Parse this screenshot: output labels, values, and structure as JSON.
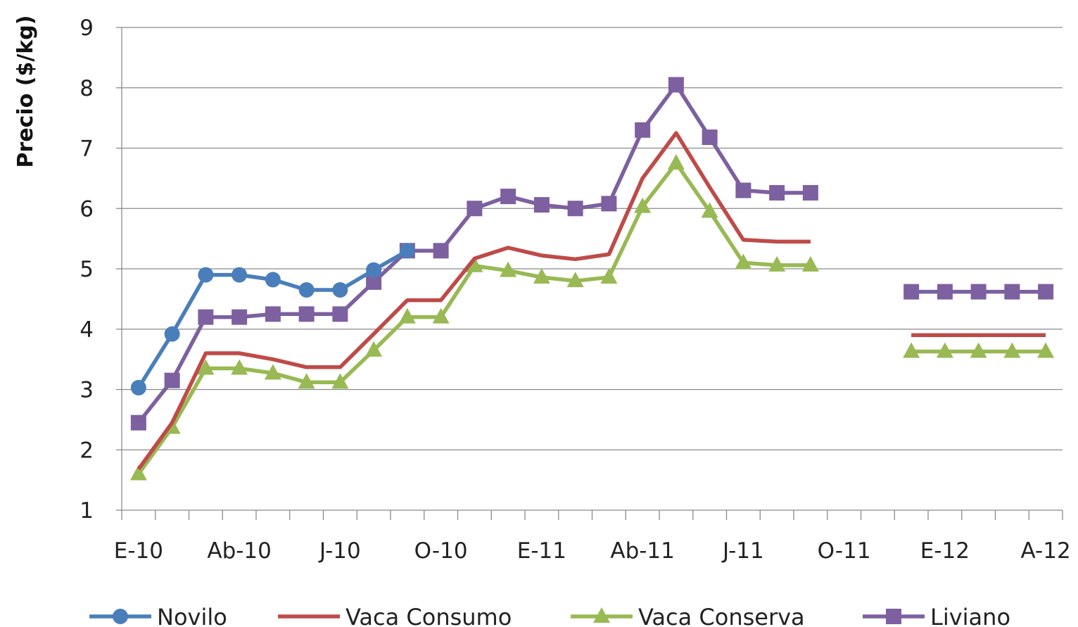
{
  "chart_data": {
    "type": "line",
    "title": "",
    "xlabel": "",
    "ylabel": "Precio ($/kg)",
    "ylim": [
      1,
      9
    ],
    "yticks": [
      "1",
      "2",
      "3",
      "4",
      "5",
      "6",
      "7",
      "8",
      "9"
    ],
    "xtick_labels": [
      "E-10",
      "Ab-10",
      "J-10",
      "O-10",
      "E-11",
      "Ab-11",
      "J-11",
      "O-11",
      "E-12",
      "A-12"
    ],
    "x": [
      "E-10",
      "F-10",
      "M-10",
      "Ab-10",
      "My-10",
      "J-10",
      "Jl-10",
      "Ag-10",
      "S-10",
      "O-10",
      "N-10",
      "D-10",
      "E-11",
      "F-11",
      "M-11",
      "Ab-11",
      "My-11",
      "J-11",
      "Jl-11",
      "Ag-11",
      "S-11",
      "O-11",
      "N-11",
      "D-11",
      "E-12",
      "F-12",
      "M-12",
      "A-12"
    ],
    "grid": true,
    "legend_position": "bottom",
    "series": [
      {
        "name": "Novilo",
        "color": "#4a7ebb",
        "marker": "circle",
        "values": [
          3.03,
          3.92,
          4.9,
          4.9,
          4.82,
          4.65,
          4.65,
          4.98,
          5.3,
          null,
          null,
          null,
          null,
          null,
          null,
          null,
          null,
          null,
          null,
          null,
          null,
          null,
          null,
          null,
          null,
          null,
          null,
          null
        ]
      },
      {
        "name": "Vaca Consumo",
        "color": "#be4b48",
        "marker": "none",
        "values": [
          1.68,
          2.45,
          3.6,
          3.6,
          3.5,
          3.37,
          3.37,
          3.92,
          4.48,
          4.48,
          5.17,
          5.35,
          5.22,
          5.16,
          5.24,
          6.5,
          7.25,
          6.35,
          5.48,
          5.45,
          5.45,
          null,
          null,
          3.9,
          3.9,
          3.9,
          3.9,
          3.9
        ]
      },
      {
        "name": "Vaca Conserva",
        "color": "#98b954",
        "marker": "triangle",
        "values": [
          1.6,
          2.37,
          3.35,
          3.35,
          3.27,
          3.12,
          3.12,
          3.65,
          4.2,
          4.2,
          5.05,
          4.97,
          4.86,
          4.8,
          4.86,
          6.03,
          6.75,
          5.95,
          5.1,
          5.06,
          5.06,
          null,
          null,
          3.63,
          3.63,
          3.63,
          3.63,
          3.63
        ]
      },
      {
        "name": "Liviano",
        "color": "#7d60a0",
        "marker": "square",
        "values": [
          2.45,
          3.15,
          4.2,
          4.2,
          4.25,
          4.25,
          4.25,
          4.78,
          5.3,
          5.3,
          6.0,
          6.2,
          6.06,
          6.0,
          6.08,
          7.3,
          8.05,
          7.18,
          6.3,
          6.26,
          6.26,
          null,
          null,
          4.62,
          4.62,
          4.62,
          4.62,
          4.62
        ]
      }
    ]
  }
}
